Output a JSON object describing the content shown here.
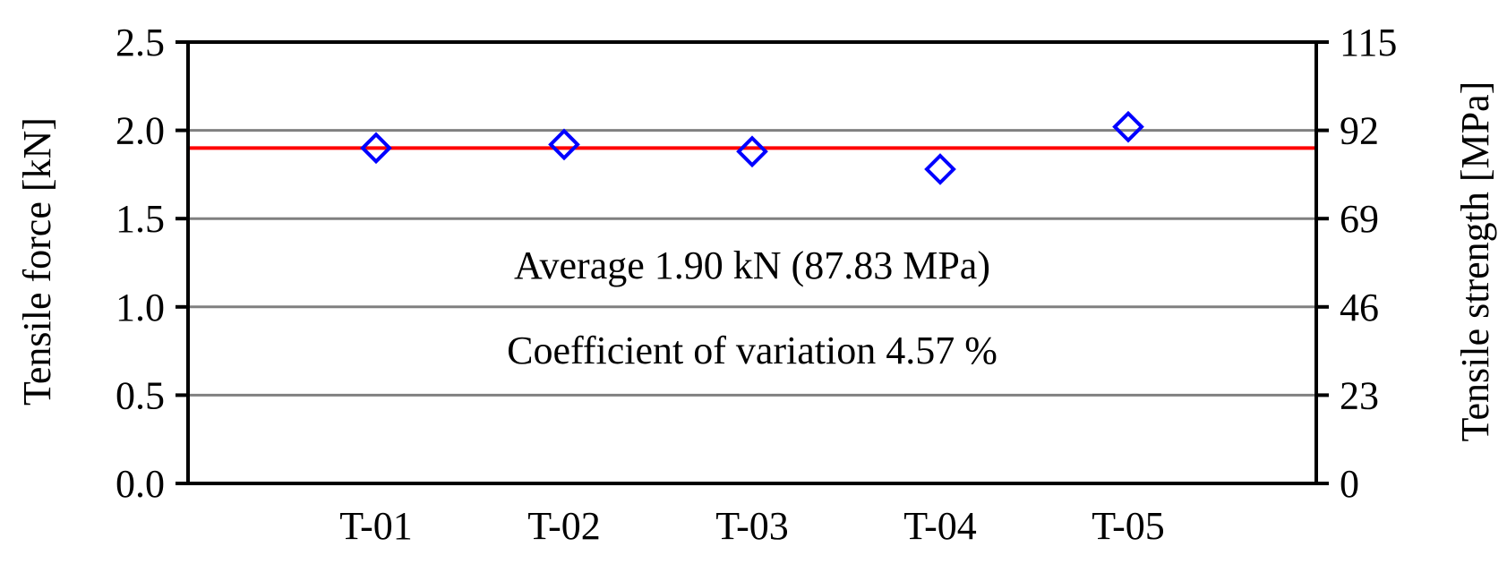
{
  "chart_data": {
    "type": "scatter",
    "categories": [
      "T-01",
      "T-02",
      "T-03",
      "T-04",
      "T-05"
    ],
    "series": [
      {
        "values": [
          1.9,
          1.92,
          1.88,
          1.78,
          2.02
        ],
        "color": "#0000ff",
        "marker": "diamond-open"
      }
    ],
    "average_line": {
      "value": 1.9,
      "color": "#ff0000"
    },
    "ylabel": "Tensile force [kN]",
    "ylabel_right": "Tensile strength [MPa]",
    "ylim": [
      0,
      2.5
    ],
    "yticks": [
      "0.0",
      "0.5",
      "1.0",
      "1.5",
      "2.0",
      "2.5"
    ],
    "ylim_right": [
      0,
      115
    ],
    "yticks_right": [
      "0",
      "23",
      "46",
      "69",
      "92",
      "115"
    ],
    "grid": true,
    "grid_color": "#808080",
    "annotations": [
      "Average 1.90 kN (87.83 MPa)",
      "Coefficient of variation 4.57 %"
    ]
  }
}
